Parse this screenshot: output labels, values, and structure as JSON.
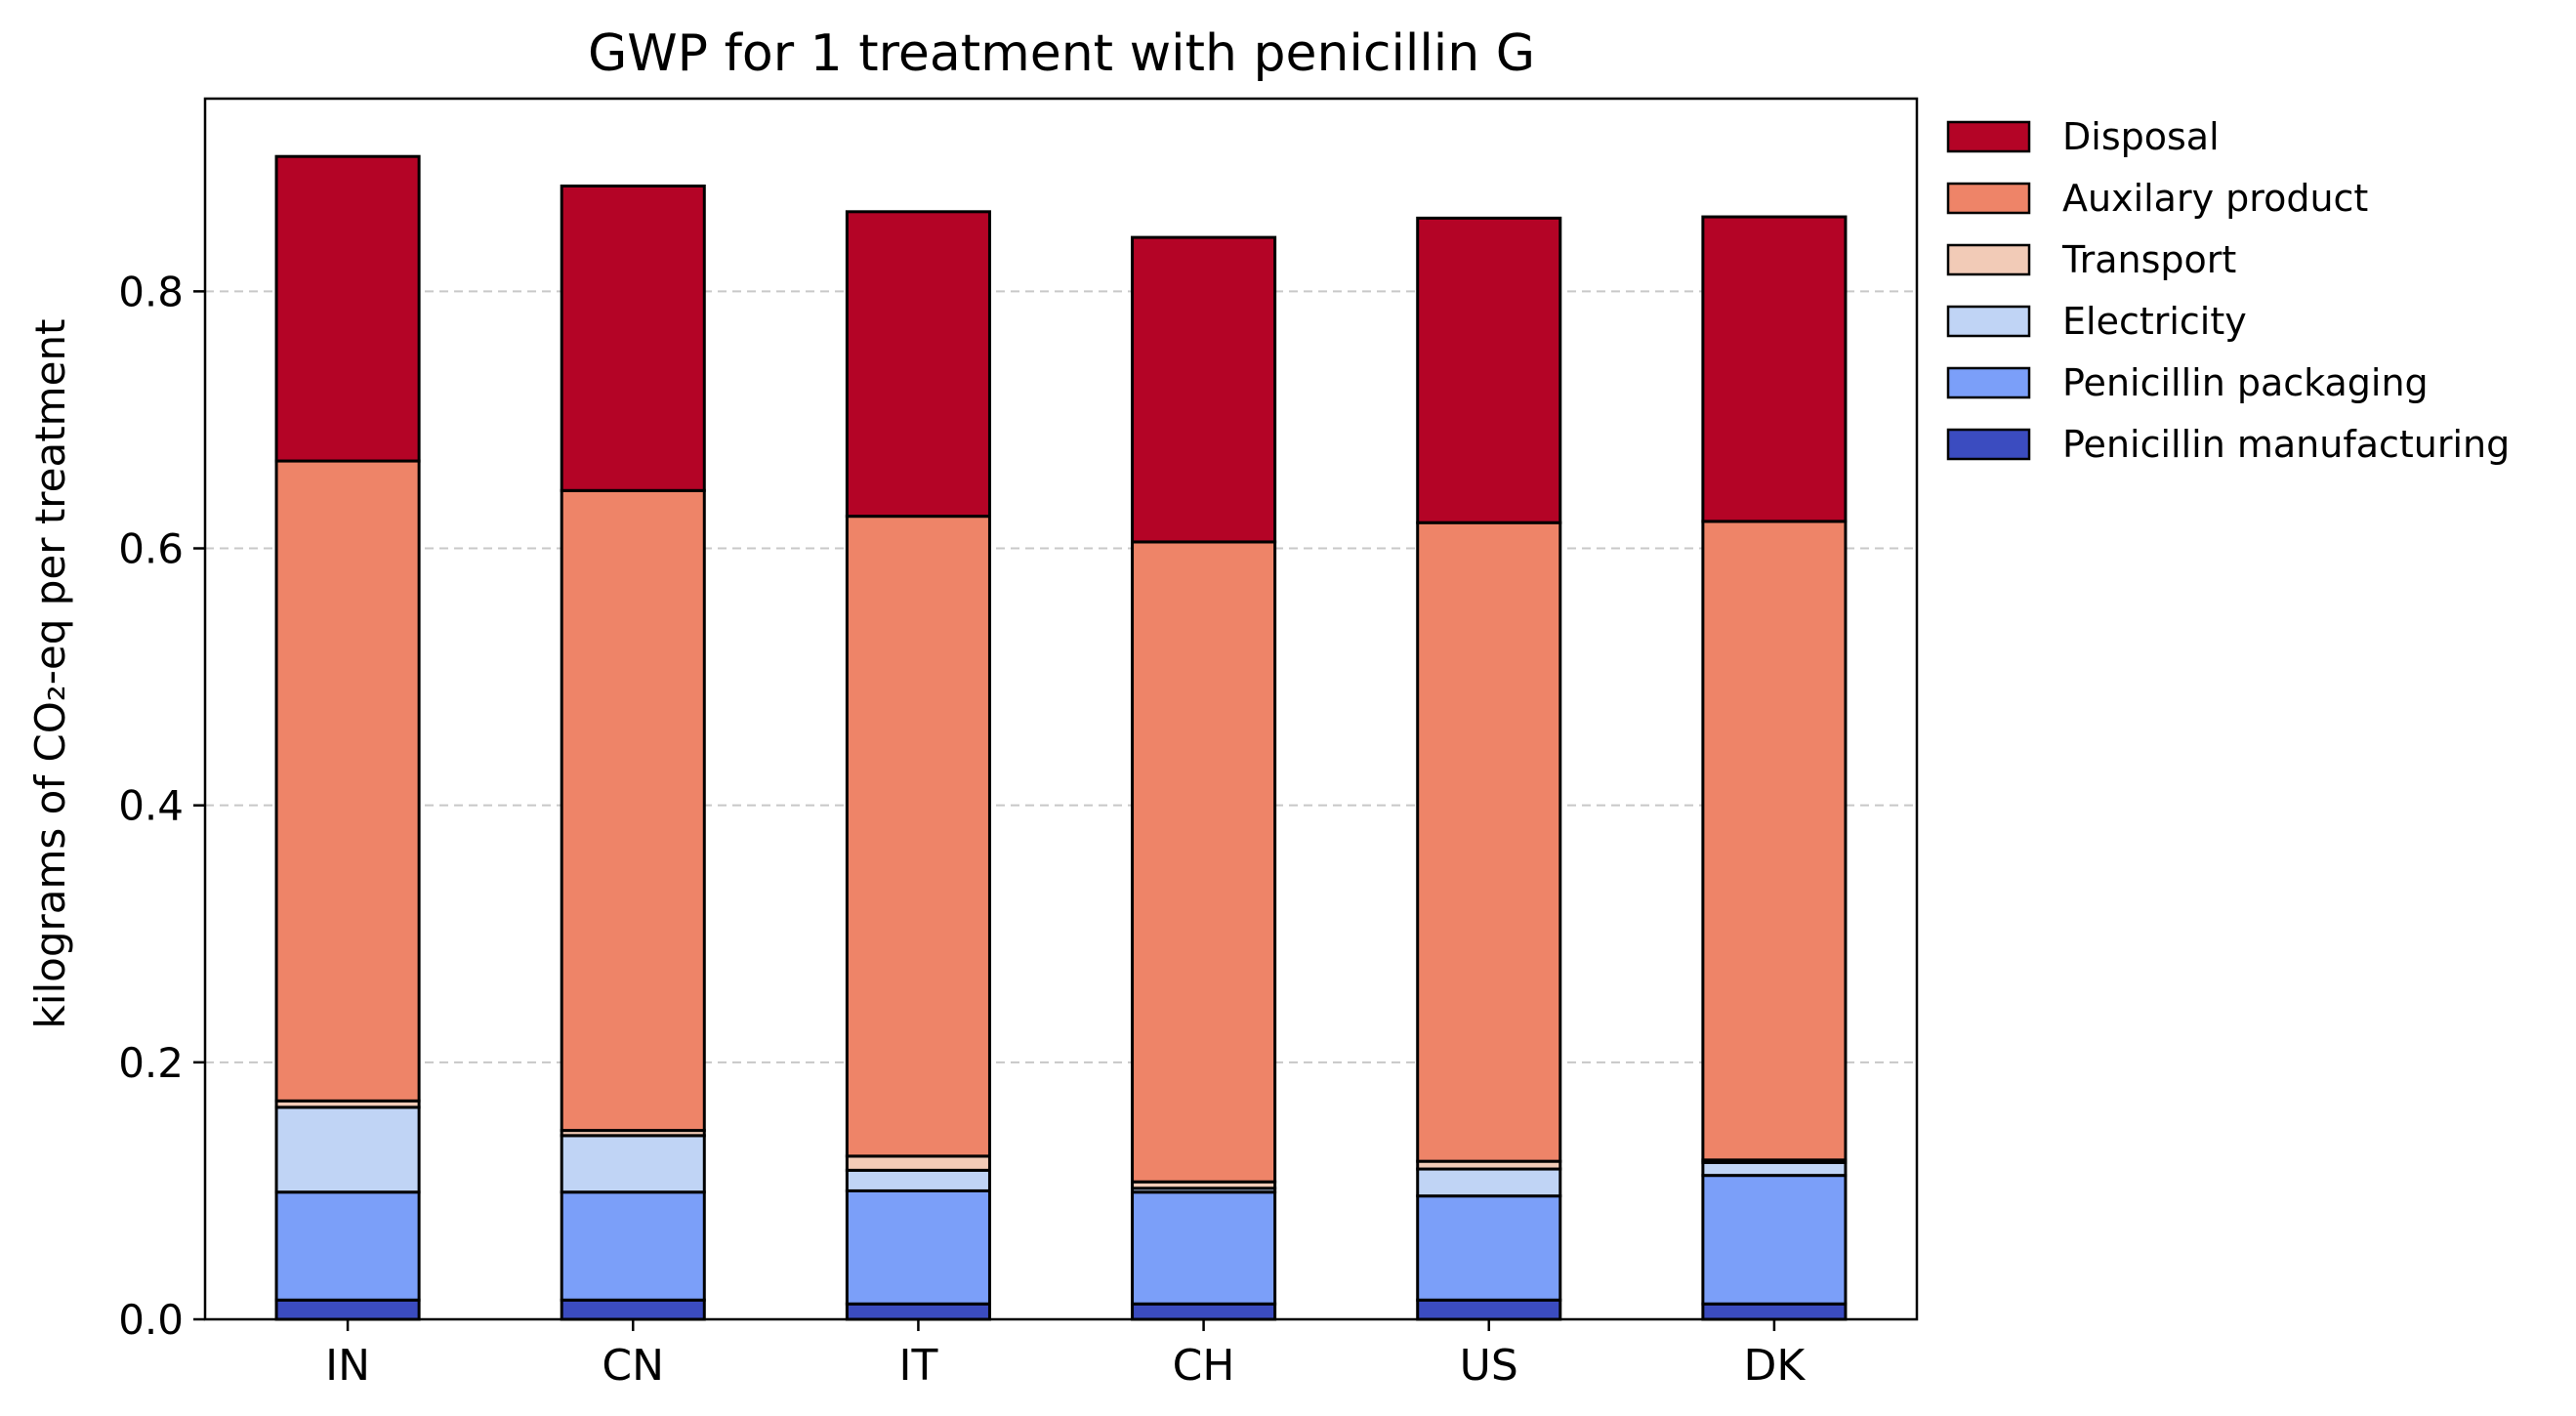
{
  "chart_data": {
    "type": "bar",
    "stacked": true,
    "title": "GWP for 1 treatment with penicillin G",
    "xlabel": "",
    "ylabel": "kilograms of CO₂-eq per treatment",
    "ylim": [
      0,
      0.95
    ],
    "yticks": [
      0.0,
      0.2,
      0.4,
      0.6,
      0.8
    ],
    "ytick_labels": [
      "0.0",
      "0.2",
      "0.4",
      "0.6",
      "0.8"
    ],
    "grid": "horizontal dashed",
    "legend_position": "outside-right-top",
    "categories": [
      "IN",
      "CN",
      "IT",
      "CH",
      "US",
      "DK"
    ],
    "series": [
      {
        "name": "Penicillin manufacturing",
        "color": "#3b4cc0",
        "values": [
          0.015,
          0.015,
          0.012,
          0.012,
          0.015,
          0.012
        ]
      },
      {
        "name": "Penicillin packaging",
        "color": "#7b9ff9",
        "values": [
          0.084,
          0.084,
          0.088,
          0.087,
          0.081,
          0.1
        ]
      },
      {
        "name": "Electricity",
        "color": "#c0d4f5",
        "values": [
          0.066,
          0.044,
          0.016,
          0.003,
          0.021,
          0.01
        ]
      },
      {
        "name": "Transport",
        "color": "#f2cbb7",
        "values": [
          0.005,
          0.004,
          0.011,
          0.005,
          0.006,
          0.002
        ]
      },
      {
        "name": "Auxilary product",
        "color": "#ee8468",
        "values": [
          0.498,
          0.498,
          0.498,
          0.498,
          0.497,
          0.497
        ]
      },
      {
        "name": "Disposal",
        "color": "#b40426",
        "values": [
          0.237,
          0.237,
          0.237,
          0.237,
          0.237,
          0.237
        ]
      }
    ]
  }
}
